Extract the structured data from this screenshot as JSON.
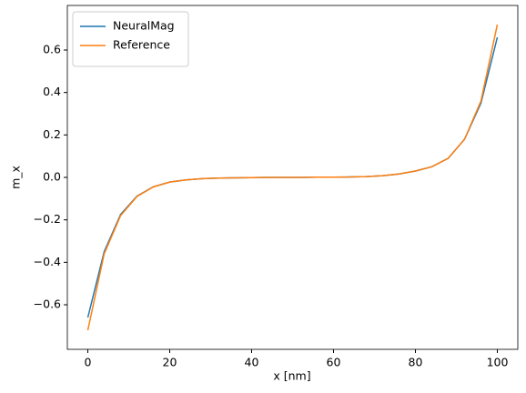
{
  "chart_data": {
    "type": "line",
    "xlabel": "x [nm]",
    "ylabel": "m_x",
    "x": [
      0,
      4,
      8,
      12,
      16,
      20,
      24,
      28,
      32,
      36,
      40,
      44,
      48,
      52,
      56,
      60,
      64,
      68,
      72,
      76,
      80,
      84,
      88,
      92,
      96,
      100
    ],
    "series": [
      {
        "name": "NeuralMag",
        "color": "#1f77b4",
        "values": [
          -0.66,
          -0.35,
          -0.175,
          -0.088,
          -0.044,
          -0.022,
          -0.012,
          -0.006,
          -0.003,
          -0.002,
          -0.001,
          0,
          0,
          0,
          0.001,
          0.001,
          0.002,
          0.004,
          0.008,
          0.016,
          0.03,
          0.05,
          0.09,
          0.18,
          0.35,
          0.66
        ]
      },
      {
        "name": "Reference",
        "color": "#ff7f0e",
        "values": [
          -0.72,
          -0.36,
          -0.18,
          -0.09,
          -0.045,
          -0.022,
          -0.012,
          -0.006,
          -0.003,
          -0.002,
          -0.001,
          0,
          0,
          0,
          0.001,
          0.001,
          0.002,
          0.004,
          0.008,
          0.016,
          0.03,
          0.05,
          0.09,
          0.18,
          0.36,
          0.72
        ]
      }
    ],
    "xlim": [
      -5,
      105
    ],
    "xticks": [
      0,
      20,
      40,
      60,
      80,
      100
    ],
    "ylim": [
      -0.81,
      0.81
    ],
    "yticks": [
      {
        "value": -0.6,
        "label": "−0.6"
      },
      {
        "value": -0.4,
        "label": "−0.4"
      },
      {
        "value": -0.2,
        "label": "−0.2"
      },
      {
        "value": 0,
        "label": "0.0"
      },
      {
        "value": 0.2,
        "label": "0.2"
      },
      {
        "value": 0.4,
        "label": "0.4"
      },
      {
        "value": 0.6,
        "label": "0.6"
      }
    ],
    "grid": false,
    "legend": "upper-left"
  }
}
